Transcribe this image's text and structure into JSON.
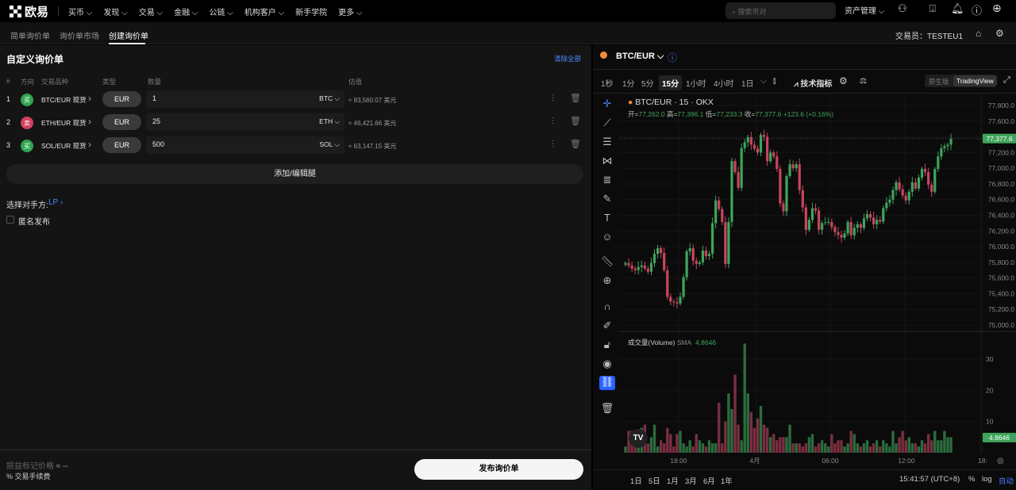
{
  "nav": {
    "brand": "欧易",
    "items": [
      "买币",
      "发现",
      "交易",
      "金融",
      "公链",
      "机构客户",
      "新手学院",
      "更多"
    ],
    "search_placeholder": "搜索币对",
    "asset_mgmt": "资产管理"
  },
  "subnav": {
    "tabs": [
      "简单询价单",
      "询价单市场",
      "创建询价单"
    ],
    "active": 2,
    "trader_label": "交易员：",
    "trader": "TESTEU1"
  },
  "form": {
    "title": "自定义询价单",
    "clear_all": "清除全部",
    "headers": [
      "#",
      "方向",
      "交易品种",
      "类型",
      "数量",
      "估值"
    ],
    "legs": [
      {
        "n": "1",
        "side": "买",
        "side_color": "#2ea44f",
        "instrument": "BTC/EUR 现货",
        "type": "EUR",
        "qty": "1",
        "unit": "BTC",
        "est": "≈ 83,560.07 美元"
      },
      {
        "n": "2",
        "side": "卖",
        "side_color": "#d0415f",
        "instrument": "ETH/EUR 现货",
        "type": "EUR",
        "qty": "25",
        "unit": "ETH",
        "est": "≈ 46,421.66 美元"
      },
      {
        "n": "3",
        "side": "买",
        "side_color": "#2ea44f",
        "instrument": "SOL/EUR 现货",
        "type": "EUR",
        "qty": "500",
        "unit": "SOL",
        "est": "≈ 63,147.15 美元"
      }
    ],
    "add_leg": "添加/编辑腿",
    "counterparty_label": "选择对手方:",
    "counterparty": "LP",
    "anonymous": "匿名发布",
    "pnl_label": "损益标记价格",
    "pnl_value": "≈ --",
    "fee_label": "交易手续费",
    "publish": "发布询价单"
  },
  "chart": {
    "symbol": "BTC/EUR",
    "timeframes": [
      "1秒",
      "1分",
      "5分",
      "15分",
      "1小时",
      "4小时",
      "1日"
    ],
    "active_tf": "15分",
    "indicators": "技术指标",
    "view_modes": [
      "原生版",
      "TradingView"
    ],
    "active_view": "TradingView",
    "legend_title": "BTC/EUR · 15 · OKX",
    "ohlc": {
      "o_label": "开=",
      "o": "77,262.0",
      "h_label": "高=",
      "h": "77,396.1",
      "l_label": "低=",
      "l": "77,233.3",
      "c_label": "收=",
      "c": "77,377.6",
      "change": "+123.6 (+0.16%)"
    },
    "volume_label": "成交量(Volume)",
    "sma_label": "SMA",
    "sma_value": "4.8646",
    "last_price": "77,377.6",
    "ranges": [
      "1日",
      "5日",
      "1月",
      "3月",
      "6月",
      "1年"
    ],
    "clock": "15:41:57 (UTC+8)",
    "pct": "%",
    "log": "log",
    "auto": "自动",
    "up_color": "#3fa45b",
    "down_color": "#c9455f"
  },
  "chart_data": {
    "type": "candlestick",
    "symbol": "BTC/EUR",
    "interval": "15",
    "exchange": "OKX",
    "price_ticks": [
      "77,800.0",
      "77,600.0",
      "77,200.0",
      "77,000.0",
      "76,800.0",
      "76,600.0",
      "76,400.0",
      "76,200.0",
      "76,000.0",
      "75,800.0",
      "75,600.0",
      "75,400.0",
      "75,200.0",
      "75,000.0"
    ],
    "ylim": [
      75000,
      77800
    ],
    "volume_ticks": [
      "30",
      "20",
      "10"
    ],
    "volume_ylim": [
      0,
      30
    ],
    "x_ticks": [
      "18:00",
      "4月",
      "06:00",
      "12:00",
      "18:"
    ],
    "closes": [
      75790,
      75760,
      75720,
      75700,
      75740,
      75760,
      75720,
      75680,
      75790,
      75910,
      75980,
      75920,
      75700,
      75360,
      75300,
      75290,
      75275,
      75360,
      75610,
      75940,
      75980,
      75820,
      75780,
      75800,
      75950,
      75880,
      75910,
      76300,
      76590,
      76480,
      76315,
      75780,
      76315,
      77090,
      76950,
      76750,
      77255,
      77330,
      77395,
      77300,
      77250,
      77200,
      77425,
      77400,
      77090,
      77200,
      77150,
      76990,
      76550,
      76450,
      76900,
      77050,
      77000,
      77050,
      76720,
      76500,
      76215,
      76340,
      76490,
      76460,
      76215,
      76300,
      76310,
      76315,
      76250,
      76185,
      76150,
      76115,
      76170,
      76315,
      76145,
      76240,
      76285,
      76240,
      76360,
      76415,
      76370,
      76285,
      76340,
      76320,
      76490,
      76560,
      76600,
      76720,
      76820,
      76730,
      76650,
      76590,
      76700,
      76820,
      76740,
      76880,
      76990,
      76950,
      76790,
      76700,
      76990,
      77150,
      77255,
      77280,
      77300,
      77377.6
    ],
    "volumes": [
      2,
      7,
      7,
      4,
      3,
      8,
      9,
      3,
      5,
      9,
      2,
      4,
      3,
      8,
      6,
      2,
      6,
      7,
      3,
      2,
      4,
      2,
      6,
      4,
      3,
      2,
      4,
      3,
      3,
      16,
      3,
      10,
      19,
      14,
      25,
      9,
      4,
      35,
      19,
      13,
      8,
      11,
      15,
      9,
      8,
      5,
      6,
      4,
      5,
      5,
      5,
      9,
      3,
      3,
      3,
      2,
      3,
      5,
      6,
      2,
      3,
      4,
      3,
      2,
      6,
      3,
      4,
      4,
      2,
      3,
      7,
      6,
      3,
      2,
      3,
      4,
      2,
      3,
      4,
      2,
      4,
      3,
      2,
      7,
      3,
      5,
      7,
      4,
      5,
      3,
      3,
      2,
      4,
      3,
      6,
      4,
      7,
      4,
      4,
      7,
      5,
      5
    ]
  }
}
